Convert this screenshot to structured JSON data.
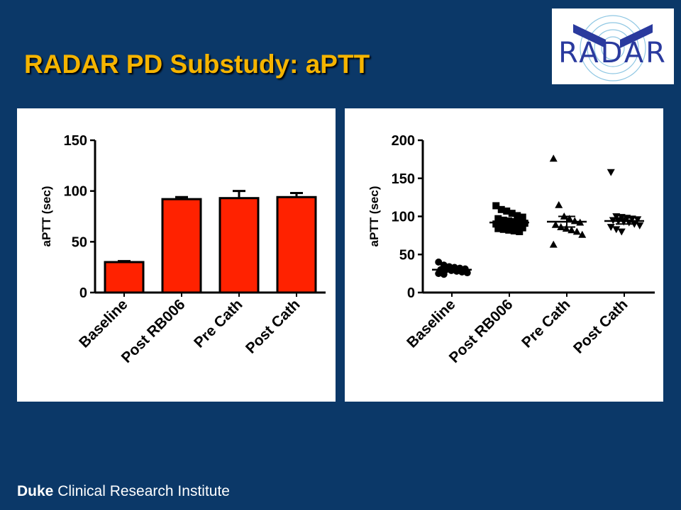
{
  "slide": {
    "title": "RADAR PD Substudy: aPTT",
    "logo_text": "RADAR",
    "footer_bold": "Duke",
    "footer_rest": " Clinical Research Institute",
    "colors": {
      "background": "#0b3868",
      "title": "#f5b400",
      "bar_fill": "#ff2200"
    }
  },
  "chart_data": [
    {
      "type": "bar",
      "categories": [
        "Baseline",
        "Post RB006",
        "Pre Cath",
        "Post Cath"
      ],
      "values": [
        30,
        92,
        93,
        94
      ],
      "error": [
        1,
        2,
        7,
        4
      ],
      "ylabel": "aPTT (sec)",
      "ylim": [
        0,
        150
      ],
      "yticks": [
        0,
        50,
        100,
        150
      ],
      "grid": false
    },
    {
      "type": "scatter",
      "categories": [
        "Baseline",
        "Post RB006",
        "Pre Cath",
        "Post Cath"
      ],
      "ylabel": "aPTT (sec)",
      "ylim": [
        0,
        200
      ],
      "yticks": [
        0,
        50,
        100,
        150,
        200
      ],
      "grid": false,
      "markers": [
        "circle",
        "square",
        "triangle-up",
        "triangle-down"
      ],
      "means": [
        30,
        92,
        93,
        94
      ],
      "sem": [
        1,
        2,
        7,
        4
      ],
      "series": [
        {
          "values": [
            40,
            36,
            34,
            33,
            32,
            31,
            30,
            30,
            29,
            28,
            27,
            26,
            25,
            24
          ]
        },
        {
          "values": [
            114,
            109,
            107,
            104,
            101,
            99,
            97,
            95,
            94,
            93,
            92,
            91,
            90,
            89,
            88,
            87,
            86,
            85,
            84,
            83,
            82,
            81,
            80
          ]
        },
        {
          "values": [
            176,
            115,
            100,
            97,
            94,
            92,
            89,
            86,
            84,
            82,
            80,
            76,
            63
          ]
        },
        {
          "values": [
            158,
            100,
            99,
            98,
            97,
            96,
            95,
            94,
            93,
            92,
            90,
            88,
            86,
            83,
            80
          ]
        }
      ]
    }
  ]
}
